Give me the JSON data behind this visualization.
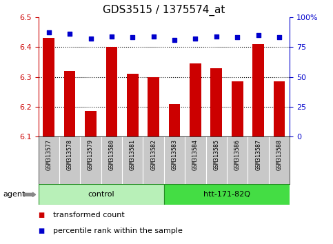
{
  "title": "GDS3515 / 1375574_at",
  "samples": [
    "GSM313577",
    "GSM313578",
    "GSM313579",
    "GSM313580",
    "GSM313581",
    "GSM313582",
    "GSM313583",
    "GSM313584",
    "GSM313585",
    "GSM313586",
    "GSM313587",
    "GSM313588"
  ],
  "bar_values": [
    6.43,
    6.32,
    6.185,
    6.4,
    6.31,
    6.3,
    6.21,
    6.345,
    6.33,
    6.285,
    6.41,
    6.285
  ],
  "percentile_values": [
    87,
    86,
    82,
    84,
    83,
    84,
    81,
    82,
    84,
    83,
    85,
    83
  ],
  "bar_color": "#cc0000",
  "dot_color": "#0000cc",
  "ylim_left": [
    6.1,
    6.5
  ],
  "ylim_right": [
    0,
    100
  ],
  "yticks_left": [
    6.1,
    6.2,
    6.3,
    6.4,
    6.5
  ],
  "yticks_right": [
    0,
    25,
    50,
    75,
    100
  ],
  "grid_values": [
    6.2,
    6.3,
    6.4
  ],
  "groups": [
    {
      "label": "control",
      "start": 0,
      "end": 6,
      "color": "#b8f0b8",
      "edge_color": "#228B22"
    },
    {
      "label": "htt-171-82Q",
      "start": 6,
      "end": 12,
      "color": "#44dd44",
      "edge_color": "#228B22"
    }
  ],
  "agent_label": "agent",
  "legend_items": [
    {
      "color": "#cc0000",
      "label": "transformed count"
    },
    {
      "color": "#0000cc",
      "label": "percentile rank within the sample"
    }
  ],
  "bar_width": 0.55,
  "ybase": 6.1,
  "tick_label_color_left": "#cc0000",
  "tick_label_color_right": "#0000cc",
  "title_fontsize": 11,
  "tick_fontsize": 8,
  "sample_fontsize": 6,
  "group_fontsize": 8,
  "legend_fontsize": 8
}
